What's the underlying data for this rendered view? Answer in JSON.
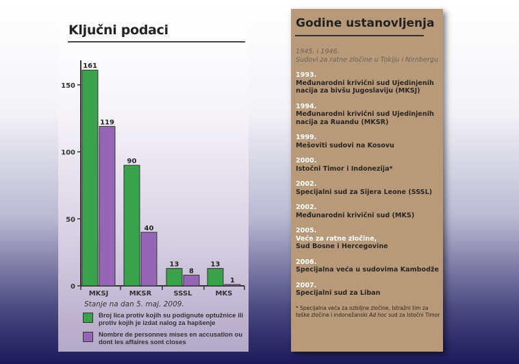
{
  "left_panel": {
    "title": "Ključni podaci",
    "date_note": "Stanje na dan 5. maj. 2009.",
    "legend": [
      {
        "label": "Broj lica protiv kojih su podignute optužnice ili protiv kojih je izdat nalog za hapšenje",
        "color": "#3aa24a"
      },
      {
        "label": "Nombre de personnes mises en accusation ou dont les affaires sont closes",
        "color": "#9466b4"
      }
    ]
  },
  "chart_data": {
    "type": "bar",
    "title": "Ključni podaci",
    "categories": [
      "MKSJ",
      "MKSR",
      "SSSL",
      "MKS"
    ],
    "series": [
      {
        "name": "Broj lica protiv kojih su podignute optužnice ili protiv kojih je izdat nalog za hapšenje",
        "values": [
          161,
          90,
          13,
          13
        ],
        "color": "#3aa24a"
      },
      {
        "name": "Nombre de personnes mises en accusation ou dont les affaires sont closes",
        "values": [
          119,
          40,
          8,
          1
        ],
        "color": "#9466b4"
      }
    ],
    "yticks": [
      0,
      50,
      100,
      150
    ],
    "ylim": [
      0,
      170
    ],
    "xlabel": "",
    "ylabel": "",
    "grid": false,
    "legend_placement": "bottom"
  },
  "right_panel": {
    "title": "Godine ustanovljenja",
    "entries": [
      {
        "year": "1945. i 1946.",
        "lines": [
          "Sudovi za ratne zločine u Tokiju i Nirnbergu"
        ]
      },
      {
        "year": "1993.",
        "lines": [
          "Međunarodni krivični sud Ujedinjenih",
          "nacija za bivšu Jugoslaviju (MKSJ)"
        ]
      },
      {
        "year": "1994.",
        "lines": [
          "Međunarodni krivični sud Ujedinjenih",
          "nacija za Ruandu (MKSR)"
        ]
      },
      {
        "year": "1999.",
        "lines": [
          "Mešoviti sudovi na Kosovu"
        ]
      },
      {
        "year": "2000.",
        "lines": [
          "Istočni Timor i Indonezija*"
        ]
      },
      {
        "year": "2002.",
        "lines": [
          "Specijalni sud za Sijera Leone (SSSL)"
        ]
      },
      {
        "year": "2002.",
        "lines": [
          "Međunarodni krivični sud (MKS)"
        ]
      },
      {
        "year": "2005.",
        "lines": [
          "Veće za ratne zločine,",
          "Sud Bosne i Hercegovine"
        ]
      },
      {
        "year": "2006.",
        "lines": [
          "Specijalna veća u sudovima Kambodže"
        ]
      },
      {
        "year": "2007.",
        "lines": [
          "Specijalni sud za Liban"
        ]
      }
    ],
    "footnote_a": "* Specijalna veća za ozbiljne zločine, Istražni tim za teške zločine i indonežanski ",
    "footnote_italic": "Ad hoc",
    "footnote_b": " sud za Istočni Timor"
  }
}
